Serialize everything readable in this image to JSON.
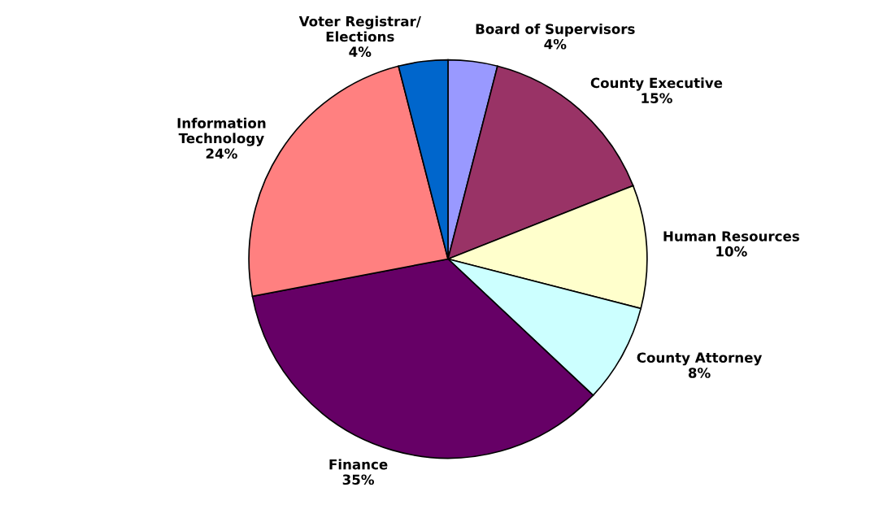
{
  "chart_data": {
    "type": "pie",
    "categories": [
      "Board of Supervisors",
      "County Executive",
      "Human Resources",
      "County Attorney",
      "Finance",
      "Information\nTechnology",
      "Voter Registrar/\nElections"
    ],
    "values": [
      4,
      15,
      10,
      8,
      35,
      24,
      4
    ],
    "value_labels": [
      "4%",
      "15%",
      "10%",
      "8%",
      "35%",
      "24%",
      "4%"
    ],
    "colors": [
      "#9999ff",
      "#993366",
      "#ffffcc",
      "#ccffff",
      "#660066",
      "#ff8080",
      "#0066cc"
    ],
    "legend": false
  }
}
